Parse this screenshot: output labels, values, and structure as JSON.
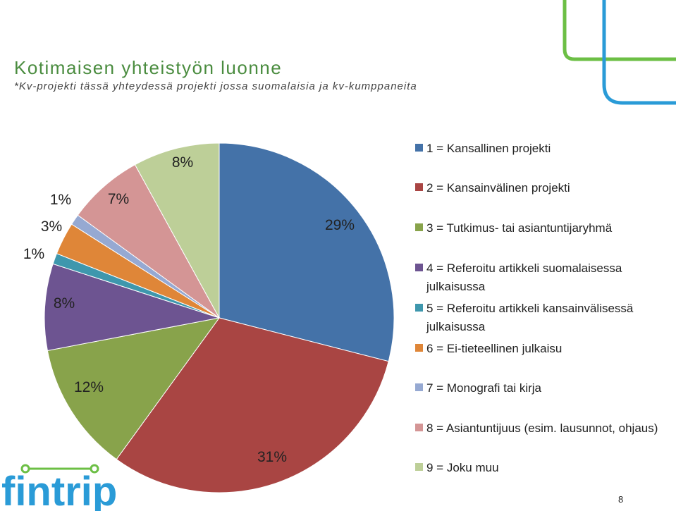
{
  "title": "Kotimaisen yhteistyön luonne",
  "subtitle": "*Kv-projekti tässä yhteydessä projekti jossa suomalaisia ja kv-kumppaneita",
  "page_number": "8",
  "logo_text": "fintrip",
  "colors": {
    "title": "#4a8c3f",
    "logo_green": "#6cbf45",
    "logo_blue": "#2a9bd7"
  },
  "chart_data": {
    "type": "pie",
    "title": "",
    "legend_position": "right",
    "start_angle_deg": 0,
    "direction": "clockwise",
    "slices": [
      {
        "legend": "1 = Kansallinen projekti",
        "value": 29,
        "label": "29%",
        "color": "#4472a8"
      },
      {
        "legend": "2 = Kansainvälinen projekti",
        "value": 31,
        "label": "31%",
        "color": "#a94543"
      },
      {
        "legend": "3 = Tutkimus- tai asiantuntijaryhmä",
        "value": 12,
        "label": "12%",
        "color": "#88a34b"
      },
      {
        "legend": "4 = Referoitu artikkeli suomalaisessa julkaisussa",
        "value": 8,
        "label": "8%",
        "color": "#6d5491"
      },
      {
        "legend": "5 = Referoitu artikkeli kansainvälisessä julkaisussa",
        "value": 1,
        "label": "1%",
        "color": "#3e97ad"
      },
      {
        "legend": "6 = Ei-tieteellinen julkaisu",
        "value": 3,
        "label": "3%",
        "color": "#df8638"
      },
      {
        "legend": "7 = Monografi tai kirja",
        "value": 1,
        "label": "1%",
        "color": "#96a9d2"
      },
      {
        "legend": "8 = Asiantuntijuus (esim. lausunnot, ohjaus)",
        "value": 7,
        "label": "7%",
        "color": "#d49595"
      },
      {
        "legend": "9 = Joku muu",
        "value": 8,
        "label": "8%",
        "color": "#bdcf98"
      }
    ]
  }
}
